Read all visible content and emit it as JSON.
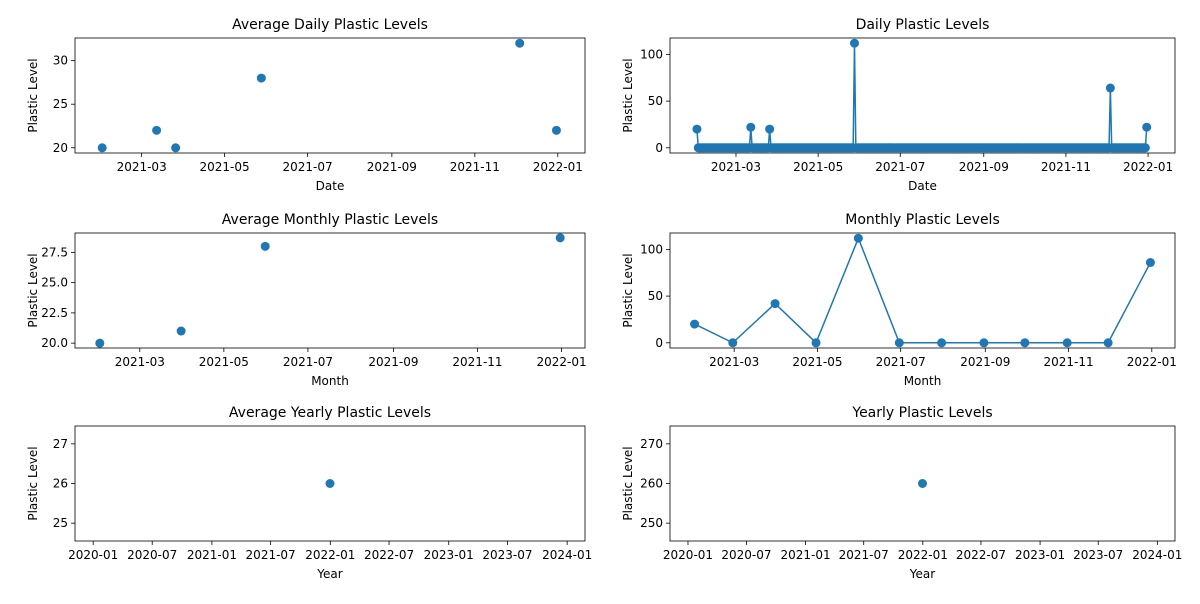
{
  "colors": {
    "series": "#1f77b4",
    "axes": "#000000",
    "background": "#ffffff"
  },
  "chart_data": [
    {
      "id": "avg-daily",
      "type": "scatter",
      "title": "Average Daily Plastic Levels",
      "xlabel": "Date",
      "ylabel": "Plastic Level",
      "x_type": "date",
      "xlim": [
        "2021-01-11",
        "2022-01-21"
      ],
      "ylim": [
        19.4,
        32.6
      ],
      "xticks": [
        "2021-03-01",
        "2021-05-01",
        "2021-07-01",
        "2021-09-01",
        "2021-11-01",
        "2022-01-01"
      ],
      "xtick_labels": [
        "2021-03",
        "2021-05",
        "2021-07",
        "2021-09",
        "2021-11",
        "2022-01"
      ],
      "yticks": [
        20,
        25,
        30
      ],
      "ytick_labels": [
        "20",
        "25",
        "30"
      ],
      "grid": false,
      "x": [
        "2021-01-31",
        "2021-03-12",
        "2021-03-26",
        "2021-05-28",
        "2021-12-04",
        "2021-12-31"
      ],
      "y": [
        20,
        22,
        20,
        28,
        32,
        22
      ]
    },
    {
      "id": "daily",
      "type": "line",
      "title": "Daily Plastic Levels",
      "xlabel": "Date",
      "ylabel": "Plastic Level",
      "x_type": "date",
      "xlim": [
        "2021-01-11",
        "2022-01-21"
      ],
      "ylim": [
        -5.6,
        117.6
      ],
      "xticks": [
        "2021-03-01",
        "2021-05-01",
        "2021-07-01",
        "2021-09-01",
        "2021-11-01",
        "2022-01-01"
      ],
      "xtick_labels": [
        "2021-03",
        "2021-05",
        "2021-07",
        "2021-09",
        "2021-11",
        "2022-01"
      ],
      "yticks": [
        0,
        50,
        100
      ],
      "ytick_labels": [
        "0",
        "50",
        "100"
      ],
      "grid": false,
      "daily_range": [
        "2021-01-31",
        "2021-12-31"
      ],
      "baseline": 0,
      "spikes": [
        {
          "date": "2021-01-31",
          "value": 20
        },
        {
          "date": "2021-03-12",
          "value": 22
        },
        {
          "date": "2021-03-26",
          "value": 20
        },
        {
          "date": "2021-05-28",
          "value": 112
        },
        {
          "date": "2021-12-04",
          "value": 64
        },
        {
          "date": "2021-12-31",
          "value": 22
        }
      ]
    },
    {
      "id": "avg-monthly",
      "type": "scatter",
      "title": "Average Monthly Plastic Levels",
      "xlabel": "Month",
      "ylabel": "Plastic Level",
      "x_type": "date",
      "xlim": [
        "2021-01-13",
        "2022-01-18"
      ],
      "ylim": [
        19.6,
        29.1
      ],
      "xticks": [
        "2021-03-01",
        "2021-05-01",
        "2021-07-01",
        "2021-09-01",
        "2021-11-01",
        "2022-01-01"
      ],
      "xtick_labels": [
        "2021-03",
        "2021-05",
        "2021-07",
        "2021-09",
        "2021-11",
        "2022-01"
      ],
      "yticks": [
        20,
        22.5,
        25,
        27.5
      ],
      "ytick_labels": [
        "20.0",
        "22.5",
        "25.0",
        "27.5"
      ],
      "grid": false,
      "x": [
        "2021-01-31",
        "2021-03-31",
        "2021-05-31",
        "2021-12-31"
      ],
      "y": [
        20,
        21,
        28,
        28.7
      ]
    },
    {
      "id": "monthly",
      "type": "line",
      "title": "Monthly Plastic Levels",
      "xlabel": "Month",
      "ylabel": "Plastic Level",
      "x_type": "date",
      "xlim": [
        "2021-01-13",
        "2022-01-18"
      ],
      "ylim": [
        -5.6,
        117.6
      ],
      "xticks": [
        "2021-03-01",
        "2021-05-01",
        "2021-07-01",
        "2021-09-01",
        "2021-11-01",
        "2022-01-01"
      ],
      "xtick_labels": [
        "2021-03",
        "2021-05",
        "2021-07",
        "2021-09",
        "2021-11",
        "2022-01"
      ],
      "yticks": [
        0,
        50,
        100
      ],
      "ytick_labels": [
        "0",
        "50",
        "100"
      ],
      "grid": false,
      "x": [
        "2021-01-31",
        "2021-02-28",
        "2021-03-31",
        "2021-04-30",
        "2021-05-31",
        "2021-06-30",
        "2021-07-31",
        "2021-08-31",
        "2021-09-30",
        "2021-10-31",
        "2021-11-30",
        "2021-12-31"
      ],
      "y": [
        20,
        0,
        42,
        0,
        112,
        0,
        0,
        0,
        0,
        0,
        0,
        86
      ]
    },
    {
      "id": "avg-yearly",
      "type": "scatter",
      "title": "Average Yearly Plastic Levels",
      "xlabel": "Year",
      "ylabel": "Plastic Level",
      "x_type": "date",
      "xlim": [
        "2019-11-06",
        "2024-02-25"
      ],
      "ylim": [
        24.55,
        27.45
      ],
      "xticks": [
        "2020-01-01",
        "2020-07-01",
        "2021-01-01",
        "2021-07-01",
        "2022-01-01",
        "2022-07-01",
        "2023-01-01",
        "2023-07-01",
        "2024-01-01"
      ],
      "xtick_labels": [
        "2020-01",
        "2020-07",
        "2021-01",
        "2021-07",
        "2022-01",
        "2022-07",
        "2023-01",
        "2023-07",
        "2024-01"
      ],
      "yticks": [
        25,
        26,
        27
      ],
      "ytick_labels": [
        "25",
        "26",
        "27"
      ],
      "grid": false,
      "x": [
        "2021-12-31"
      ],
      "y": [
        26
      ]
    },
    {
      "id": "yearly",
      "type": "line",
      "title": "Yearly Plastic Levels",
      "xlabel": "Year",
      "ylabel": "Plastic Level",
      "x_type": "date",
      "xlim": [
        "2019-11-06",
        "2024-02-25"
      ],
      "ylim": [
        245.5,
        274.5
      ],
      "xticks": [
        "2020-01-01",
        "2020-07-01",
        "2021-01-01",
        "2021-07-01",
        "2022-01-01",
        "2022-07-01",
        "2023-01-01",
        "2023-07-01",
        "2024-01-01"
      ],
      "xtick_labels": [
        "2020-01",
        "2020-07",
        "2021-01",
        "2021-07",
        "2022-01",
        "2022-07",
        "2023-01",
        "2023-07",
        "2024-01"
      ],
      "yticks": [
        250,
        260,
        270
      ],
      "ytick_labels": [
        "250",
        "260",
        "270"
      ],
      "grid": false,
      "x": [
        "2021-12-31"
      ],
      "y": [
        260
      ]
    }
  ]
}
